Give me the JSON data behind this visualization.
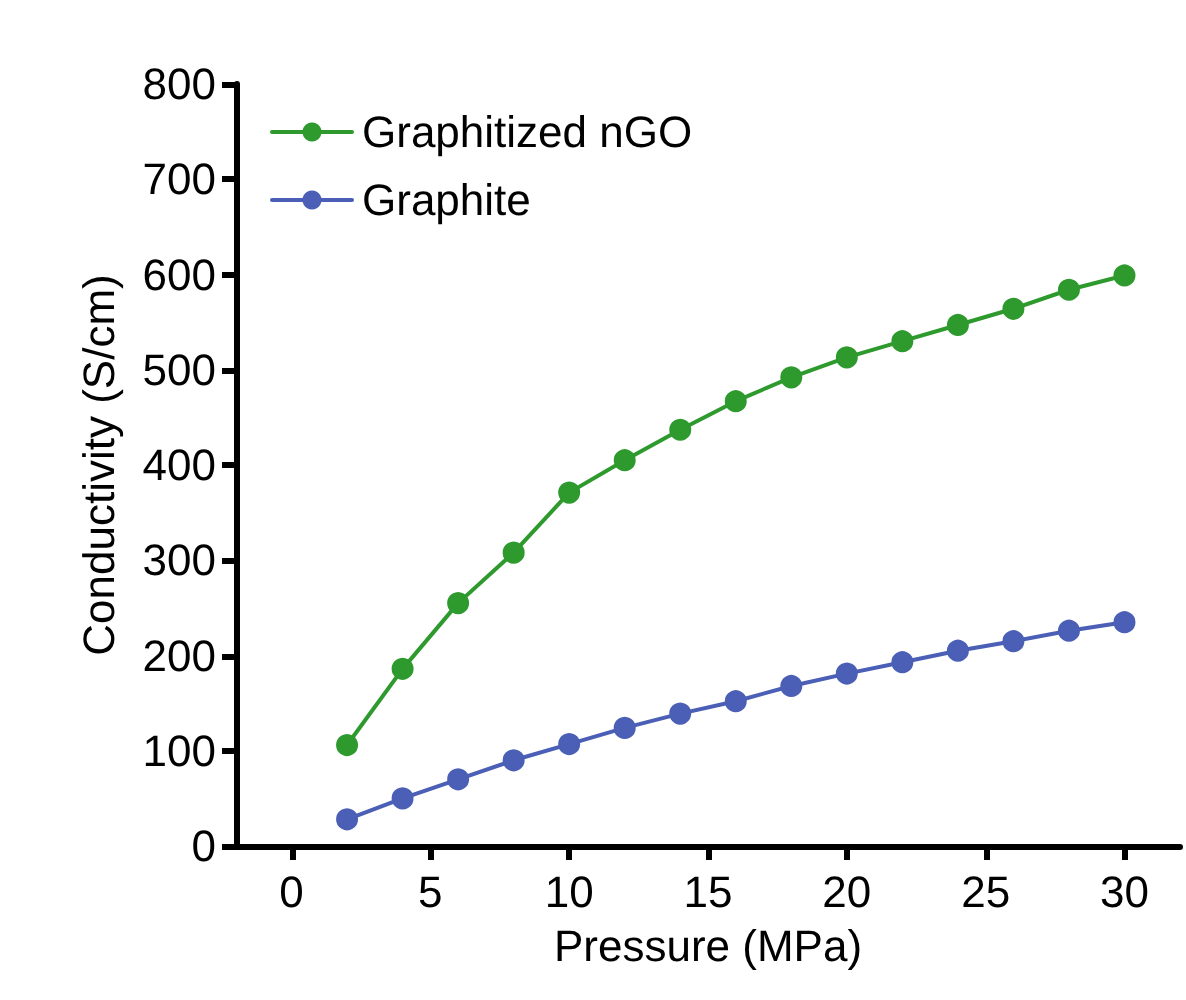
{
  "chart_data": {
    "type": "line",
    "xlabel": "Pressure (MPa)",
    "ylabel": "Conductivity (S/cm)",
    "x": [
      2,
      4,
      6,
      8,
      10,
      12,
      14,
      16,
      18,
      20,
      22,
      24,
      26,
      28,
      30
    ],
    "series": [
      {
        "name": "Graphitized nGO",
        "color": "#2e9a2e",
        "values": [
          106,
          186,
          255,
          308,
          371,
          405,
          437,
          467,
          492,
          513,
          530,
          547,
          564,
          584,
          599
        ]
      },
      {
        "name": "Graphite",
        "color": "#4a5fb5",
        "values": [
          28,
          50,
          70,
          90,
          107,
          124,
          139,
          152,
          168,
          181,
          193,
          205,
          215,
          226,
          235
        ]
      }
    ],
    "xlim": [
      -2,
      32
    ],
    "xticks": [
      0,
      5,
      10,
      15,
      20,
      25,
      30
    ],
    "ylim": [
      0,
      800
    ],
    "yticks": [
      0,
      100,
      200,
      300,
      400,
      500,
      600,
      700,
      800
    ],
    "grid": false,
    "legend": "top left",
    "marker": "circle",
    "line_style": "solid"
  }
}
